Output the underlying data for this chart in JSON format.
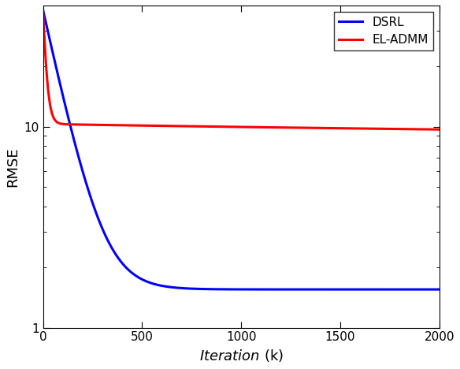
{
  "title": "",
  "xlabel_italic": "Iteration",
  "xlabel_normal": " (k)",
  "ylabel": "RMSE",
  "xlim": [
    0,
    2000
  ],
  "ylim_log": [
    1,
    40
  ],
  "xticklabels": [
    0,
    500,
    1000,
    1500,
    2000
  ],
  "yticks": [
    1,
    10
  ],
  "legend_labels": [
    "DSRL",
    "EL-ADMM"
  ],
  "dsrl_color": "#0000ff",
  "eladmm_color": "#ff0000",
  "line_width": 2.2,
  "dsrl_start": 38,
  "dsrl_end": 1.55,
  "tau_dsrl": 95,
  "eladmm_start": 38,
  "eladmm_plateau": 10.3,
  "eladmm_end": 8.4,
  "tau_eladmm_fast": 15,
  "tau_eladmm_slow": 5000,
  "n_points": 2000,
  "background_color": "#ffffff",
  "legend_fontsize": 11,
  "axis_fontsize": 13,
  "tick_fontsize": 11
}
